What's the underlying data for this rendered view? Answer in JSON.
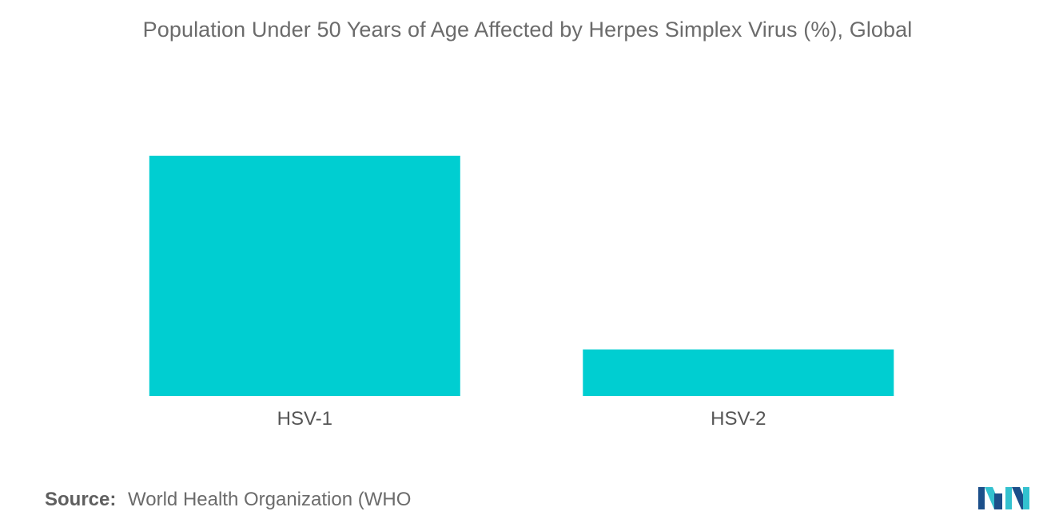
{
  "chart_data": {
    "type": "bar",
    "title": "Population Under 50 Years of Age Affected by Herpes Simplex Virus (%), Global",
    "categories": [
      "HSV-1",
      "HSV-2"
    ],
    "values": [
      67,
      13
    ],
    "xlabel": "",
    "ylabel": "",
    "ylim": [
      0,
      67
    ],
    "grid": false,
    "legend": "none",
    "bar_color": "#00CED1"
  },
  "source": {
    "label": "Source:",
    "text": "World Health Organization (WHO"
  },
  "logo": {
    "icon": "mordor-intelligence-logo-icon",
    "colors": [
      "#1c4f8a",
      "#33c1cf"
    ]
  }
}
